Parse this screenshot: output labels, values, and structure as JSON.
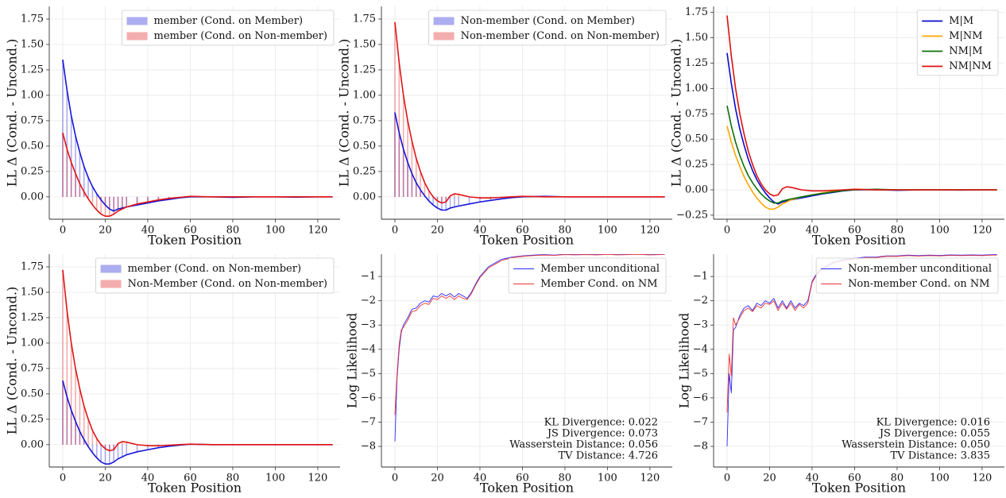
{
  "chart_data": [
    {
      "type": "stemline",
      "ylabel": "LL Δ (Cond. - Uncond.)",
      "xlabel": "Token Position",
      "grid": true,
      "legend": "upper right",
      "xlim": [
        -6.35,
        130.5
      ],
      "xticks": [
        0,
        20,
        40,
        60,
        80,
        100,
        120
      ],
      "ylim": [
        -0.22,
        1.875
      ],
      "yticks": [
        {
          "value": 0,
          "label": "0.00"
        },
        0.25,
        {
          "value": 0.5,
          "label": "0.50"
        },
        0.75,
        {
          "value": 1,
          "label": "1.00"
        },
        1.25,
        {
          "value": 1.5,
          "label": "1.50"
        },
        1.75
      ],
      "x": [
        0,
        2,
        4,
        6,
        8,
        10,
        12,
        14,
        16,
        18,
        20,
        22,
        24,
        26,
        28,
        30,
        35,
        40,
        45,
        50,
        55,
        60,
        70,
        80,
        90,
        100,
        110,
        120,
        127
      ],
      "series": [
        {
          "name": "member (Cond. on Member)",
          "color": "#1515d8",
          "values": [
            1.35,
            1.05,
            0.8,
            0.6,
            0.44,
            0.3,
            0.19,
            0.1,
            0.03,
            -0.03,
            -0.08,
            -0.12,
            -0.14,
            -0.12,
            -0.11,
            -0.1,
            -0.08,
            -0.06,
            -0.04,
            -0.025,
            -0.01,
            0.0,
            0.0,
            -0.005,
            0.0,
            0.0,
            -0.003,
            0.0,
            0.0
          ]
        },
        {
          "name": "member (Cond. on Non-member)",
          "color": "#e01515",
          "values": [
            0.63,
            0.47,
            0.34,
            0.23,
            0.13,
            0.05,
            -0.02,
            -0.08,
            -0.13,
            -0.17,
            -0.19,
            -0.19,
            -0.17,
            -0.14,
            -0.12,
            -0.1,
            -0.07,
            -0.05,
            -0.03,
            -0.015,
            -0.005,
            0.005,
            0.0,
            0.0,
            0.0,
            0.0,
            0.0,
            0.0,
            0.0
          ]
        }
      ]
    },
    {
      "type": "stemline",
      "ylabel": "LL Δ (Cond. - Uncond.)",
      "xlabel": "Token Position",
      "grid": true,
      "legend": "upper right",
      "xlim": [
        -6.35,
        130.5
      ],
      "xticks": [
        0,
        20,
        40,
        60,
        80,
        100,
        120
      ],
      "ylim": [
        -0.22,
        1.875
      ],
      "yticks": [
        {
          "value": 0,
          "label": "0.00"
        },
        0.25,
        {
          "value": 0.5,
          "label": "0.50"
        },
        0.75,
        {
          "value": 1,
          "label": "1.00"
        },
        1.25,
        {
          "value": 1.5,
          "label": "1.50"
        },
        1.75
      ],
      "x": [
        0,
        2,
        4,
        6,
        8,
        10,
        12,
        14,
        16,
        18,
        20,
        22,
        24,
        26,
        28,
        30,
        35,
        40,
        45,
        50,
        55,
        60,
        70,
        80,
        90,
        100,
        110,
        120,
        127
      ],
      "series": [
        {
          "name": "Non-member (Cond. on Member)",
          "color": "#1515d8",
          "values": [
            0.83,
            0.63,
            0.47,
            0.34,
            0.23,
            0.14,
            0.07,
            0.01,
            -0.04,
            -0.08,
            -0.11,
            -0.13,
            -0.13,
            -0.11,
            -0.1,
            -0.09,
            -0.07,
            -0.05,
            -0.035,
            -0.02,
            -0.008,
            0.0,
            0.005,
            0.0,
            0.0,
            0.0,
            0.0,
            0.0,
            0.0
          ]
        },
        {
          "name": "Non-member (Cond. on Non-member)",
          "color": "#e01515",
          "values": [
            1.72,
            1.32,
            1.0,
            0.75,
            0.55,
            0.38,
            0.25,
            0.14,
            0.06,
            0.0,
            -0.04,
            -0.06,
            -0.05,
            0.01,
            0.03,
            0.025,
            0.0,
            -0.01,
            -0.01,
            -0.005,
            0.0,
            0.005,
            0.0,
            0.0,
            0.0,
            0.0,
            0.0,
            0.0,
            0.0
          ]
        }
      ]
    },
    {
      "type": "line",
      "ylabel": "LL Δ (Cond. - Uncond.)",
      "xlabel": "Token Position",
      "grid": true,
      "legend": "upper right",
      "xlim": [
        -6.35,
        130.5
      ],
      "xticks": [
        0,
        20,
        40,
        60,
        80,
        100,
        120
      ],
      "ylim": [
        -0.29,
        1.81
      ],
      "yticks": [
        {
          "value": -0.25,
          "label": "−0.25"
        },
        {
          "value": 0,
          "label": "0.00"
        },
        0.25,
        {
          "value": 0.5,
          "label": "0.50"
        },
        0.75,
        {
          "value": 1,
          "label": "1.00"
        },
        1.25,
        {
          "value": 1.5,
          "label": "1.50"
        },
        1.75
      ],
      "x": [
        0,
        2,
        4,
        6,
        8,
        10,
        12,
        14,
        16,
        18,
        20,
        22,
        24,
        26,
        28,
        30,
        35,
        40,
        45,
        50,
        55,
        60,
        70,
        80,
        90,
        100,
        110,
        120,
        127
      ],
      "series": [
        {
          "name": "M|M",
          "color": "#0a0acc",
          "values": [
            1.35,
            1.05,
            0.8,
            0.6,
            0.44,
            0.3,
            0.19,
            0.1,
            0.03,
            -0.03,
            -0.08,
            -0.12,
            -0.14,
            -0.12,
            -0.11,
            -0.1,
            -0.08,
            -0.06,
            -0.04,
            -0.025,
            -0.01,
            0.0,
            0.0,
            -0.005,
            0.0,
            0.0,
            -0.003,
            0.0,
            0.0
          ]
        },
        {
          "name": "M|NM",
          "color": "#ffa500",
          "values": [
            0.63,
            0.47,
            0.34,
            0.23,
            0.13,
            0.05,
            -0.02,
            -0.08,
            -0.13,
            -0.17,
            -0.19,
            -0.19,
            -0.17,
            -0.14,
            -0.12,
            -0.1,
            -0.07,
            -0.05,
            -0.03,
            -0.015,
            -0.005,
            0.005,
            0.0,
            0.0,
            0.0,
            0.0,
            0.0,
            0.0,
            0.0
          ]
        },
        {
          "name": "NM|M",
          "color": "#0a700a",
          "values": [
            0.83,
            0.63,
            0.47,
            0.34,
            0.23,
            0.14,
            0.07,
            0.01,
            -0.04,
            -0.08,
            -0.11,
            -0.13,
            -0.13,
            -0.11,
            -0.1,
            -0.09,
            -0.07,
            -0.05,
            -0.035,
            -0.02,
            -0.008,
            0.0,
            0.005,
            0.0,
            0.0,
            0.0,
            0.0,
            0.0,
            0.0
          ]
        },
        {
          "name": "NM|NM",
          "color": "#dd1010",
          "values": [
            1.72,
            1.32,
            1.0,
            0.75,
            0.55,
            0.38,
            0.25,
            0.14,
            0.06,
            0.0,
            -0.04,
            -0.06,
            -0.05,
            0.01,
            0.03,
            0.025,
            0.0,
            -0.01,
            -0.01,
            -0.005,
            0.0,
            0.005,
            0.0,
            0.0,
            0.0,
            0.0,
            0.0,
            0.0,
            0.0
          ]
        }
      ]
    },
    {
      "type": "stemline",
      "ylabel": "LL Δ (Cond. - Uncond.)",
      "xlabel": "Token Position",
      "grid": true,
      "legend": "upper right",
      "xlim": [
        -6.35,
        130.5
      ],
      "xticks": [
        0,
        20,
        40,
        60,
        80,
        100,
        120
      ],
      "ylim": [
        -0.22,
        1.875
      ],
      "yticks": [
        {
          "value": 0,
          "label": "0.00"
        },
        0.25,
        {
          "value": 0.5,
          "label": "0.50"
        },
        0.75,
        {
          "value": 1,
          "label": "1.00"
        },
        1.25,
        {
          "value": 1.5,
          "label": "1.50"
        },
        1.75
      ],
      "x": [
        0,
        2,
        4,
        6,
        8,
        10,
        12,
        14,
        16,
        18,
        20,
        22,
        24,
        26,
        28,
        30,
        35,
        40,
        45,
        50,
        55,
        60,
        70,
        80,
        90,
        100,
        110,
        120,
        127
      ],
      "series": [
        {
          "name": "member (Cond. on Non-member)",
          "color": "#1515d8",
          "values": [
            0.63,
            0.47,
            0.34,
            0.23,
            0.13,
            0.05,
            -0.02,
            -0.08,
            -0.13,
            -0.17,
            -0.19,
            -0.19,
            -0.17,
            -0.14,
            -0.12,
            -0.1,
            -0.07,
            -0.05,
            -0.03,
            -0.015,
            -0.005,
            0.005,
            0.0,
            0.0,
            0.0,
            0.0,
            0.0,
            0.0,
            0.0
          ]
        },
        {
          "name": "Non-Member (Cond. on Non-member)",
          "color": "#e01515",
          "values": [
            1.72,
            1.32,
            1.0,
            0.75,
            0.55,
            0.38,
            0.25,
            0.14,
            0.06,
            0.0,
            -0.04,
            -0.06,
            -0.05,
            0.01,
            0.03,
            0.025,
            0.0,
            -0.01,
            -0.01,
            -0.005,
            0.0,
            0.005,
            0.0,
            0.0,
            0.0,
            0.0,
            0.0,
            0.0,
            0.0
          ]
        }
      ]
    },
    {
      "type": "line",
      "ylabel": "Log Likelihood",
      "xlabel": "Token Position",
      "grid": true,
      "legend": "upper right",
      "xlim": [
        -6.35,
        130.5
      ],
      "xticks": [
        0,
        20,
        40,
        60,
        80,
        100,
        120
      ],
      "ylim": [
        -8.85,
        -0.08
      ],
      "yticks": [
        {
          "value": -8,
          "label": "−8"
        },
        {
          "value": -7,
          "label": "−7"
        },
        {
          "value": -6,
          "label": "−6"
        },
        {
          "value": -5,
          "label": "−5"
        },
        {
          "value": -4,
          "label": "−4"
        },
        {
          "value": -3,
          "label": "−3"
        },
        {
          "value": -2,
          "label": "−2"
        },
        {
          "value": -1,
          "label": "−1"
        }
      ],
      "annotations": [
        "KL Divergence: 0.022",
        "JS Divergence: 0.073",
        "Wasserstein Distance: 0.056",
        "TV Distance: 4.726"
      ],
      "x": [
        0,
        1,
        2,
        3,
        4,
        6,
        8,
        10,
        12,
        14,
        16,
        18,
        20,
        22,
        24,
        26,
        28,
        30,
        32,
        34,
        36,
        38,
        40,
        42,
        44,
        46,
        48,
        50,
        55,
        60,
        65,
        70,
        75,
        80,
        85,
        90,
        95,
        100,
        105,
        110,
        115,
        120,
        125,
        127
      ],
      "series": [
        {
          "name": "Member unconditional",
          "color": "#2b2bff",
          "values": [
            -7.8,
            -5.2,
            -4.0,
            -3.3,
            -3.0,
            -2.7,
            -2.35,
            -2.3,
            -2.1,
            -2.0,
            -2.05,
            -1.8,
            -1.85,
            -1.7,
            -1.8,
            -1.7,
            -1.85,
            -1.7,
            -1.8,
            -1.9,
            -1.65,
            -1.3,
            -1.0,
            -0.8,
            -0.6,
            -0.5,
            -0.4,
            -0.3,
            -0.2,
            -0.15,
            -0.12,
            -0.1,
            -0.12,
            -0.08,
            -0.1,
            -0.09,
            -0.1,
            -0.08,
            -0.1,
            -0.09,
            -0.08,
            -0.1,
            -0.09,
            -0.08
          ]
        },
        {
          "name": "Member Cond. on NM",
          "color": "#ee3333",
          "values": [
            -6.7,
            -5.0,
            -3.8,
            -3.2,
            -3.1,
            -2.8,
            -2.45,
            -2.4,
            -2.2,
            -2.1,
            -2.15,
            -1.9,
            -1.95,
            -1.8,
            -1.9,
            -1.8,
            -1.95,
            -1.8,
            -1.9,
            -1.95,
            -1.7,
            -1.35,
            -1.05,
            -0.85,
            -0.65,
            -0.55,
            -0.45,
            -0.35,
            -0.22,
            -0.17,
            -0.14,
            -0.12,
            -0.13,
            -0.1,
            -0.11,
            -0.1,
            -0.11,
            -0.09,
            -0.11,
            -0.1,
            -0.09,
            -0.11,
            -0.1,
            -0.09
          ]
        }
      ]
    },
    {
      "type": "line",
      "ylabel": "Log Likelihood",
      "xlabel": "Token Position",
      "grid": true,
      "legend": "upper right",
      "xlim": [
        -6.35,
        130.5
      ],
      "xticks": [
        0,
        20,
        40,
        60,
        80,
        100,
        120
      ],
      "ylim": [
        -8.85,
        -0.08
      ],
      "yticks": [
        {
          "value": -8,
          "label": "−8"
        },
        {
          "value": -7,
          "label": "−7"
        },
        {
          "value": -6,
          "label": "−6"
        },
        {
          "value": -5,
          "label": "−5"
        },
        {
          "value": -4,
          "label": "−4"
        },
        {
          "value": -3,
          "label": "−3"
        },
        {
          "value": -2,
          "label": "−2"
        },
        {
          "value": -1,
          "label": "−1"
        }
      ],
      "annotations": [
        "KL Divergence: 0.016",
        "JS Divergence: 0.055",
        "Wasserstein Distance: 0.050",
        "TV Distance: 3.835"
      ],
      "x": [
        0,
        1,
        2,
        3,
        4,
        6,
        8,
        10,
        12,
        14,
        16,
        18,
        20,
        22,
        24,
        26,
        28,
        30,
        32,
        34,
        36,
        38,
        40,
        42,
        44,
        46,
        48,
        50,
        55,
        60,
        65,
        70,
        75,
        80,
        85,
        90,
        95,
        100,
        105,
        110,
        115,
        120,
        125,
        127
      ],
      "series": [
        {
          "name": "Non-member unconditional",
          "color": "#2b2bff",
          "values": [
            -8.0,
            -5.0,
            -5.8,
            -3.2,
            -3.1,
            -2.6,
            -2.3,
            -2.2,
            -2.4,
            -2.1,
            -2.2,
            -2.0,
            -2.1,
            -1.9,
            -2.3,
            -2.0,
            -2.3,
            -2.0,
            -2.3,
            -2.1,
            -2.2,
            -2.0,
            -1.2,
            -0.9,
            -0.7,
            -0.6,
            -0.5,
            -0.4,
            -0.3,
            -0.25,
            -0.2,
            -0.2,
            -0.15,
            -0.15,
            -0.12,
            -0.14,
            -0.12,
            -0.13,
            -0.11,
            -0.12,
            -0.11,
            -0.12,
            -0.1,
            -0.1
          ]
        },
        {
          "name": "Non-member Cond. on NM",
          "color": "#ee3333",
          "values": [
            -6.6,
            -4.2,
            -5.1,
            -2.7,
            -3.0,
            -2.7,
            -2.4,
            -2.3,
            -2.45,
            -2.2,
            -2.3,
            -2.1,
            -2.15,
            -2.0,
            -2.4,
            -2.1,
            -2.35,
            -2.1,
            -2.4,
            -2.15,
            -2.3,
            -2.1,
            -1.25,
            -0.95,
            -0.75,
            -0.65,
            -0.55,
            -0.45,
            -0.35,
            -0.28,
            -0.22,
            -0.22,
            -0.17,
            -0.17,
            -0.14,
            -0.16,
            -0.14,
            -0.15,
            -0.13,
            -0.14,
            -0.13,
            -0.14,
            -0.12,
            -0.12
          ]
        }
      ]
    }
  ]
}
